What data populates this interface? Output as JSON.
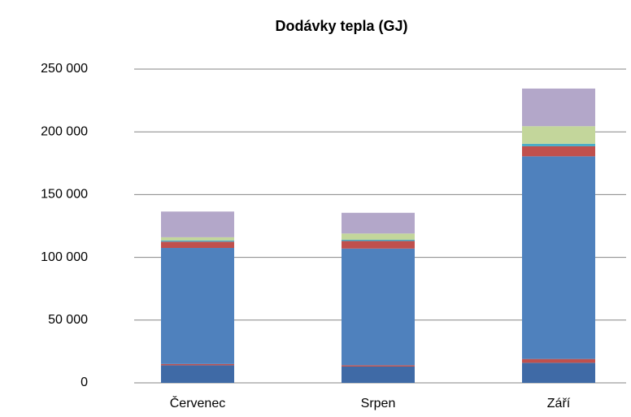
{
  "chart_data": {
    "type": "bar",
    "stacked": true,
    "title": "Dodávky tepla (GJ)",
    "categories": [
      "Červenec",
      "Srpen",
      "Září"
    ],
    "series": [
      {
        "color": "#3f6aa6",
        "values": [
          14000,
          13000,
          16000
        ]
      },
      {
        "color": "#c0504d",
        "values": [
          1000,
          1000,
          3000
        ]
      },
      {
        "color": "#4f81bd",
        "values": [
          92500,
          93000,
          161500
        ]
      },
      {
        "color": "#c0504d",
        "values": [
          5000,
          6000,
          8000
        ]
      },
      {
        "color": "#4bacc6",
        "values": [
          1000,
          1000,
          2000
        ]
      },
      {
        "color": "#c3d69b",
        "values": [
          2500,
          5000,
          14000
        ]
      },
      {
        "color": "#b3a7c9",
        "values": [
          20500,
          16500,
          30000
        ]
      }
    ],
    "ylim": [
      0,
      250000
    ],
    "yticks": [
      0,
      {
        "value": 50000,
        "label": "50 000"
      },
      {
        "value": 100000,
        "label": "100 000"
      },
      {
        "value": 150000,
        "label": "150 000"
      },
      {
        "value": 200000,
        "label": "200 000"
      },
      {
        "value": 250000,
        "label": "250 000"
      }
    ],
    "grid": true
  }
}
